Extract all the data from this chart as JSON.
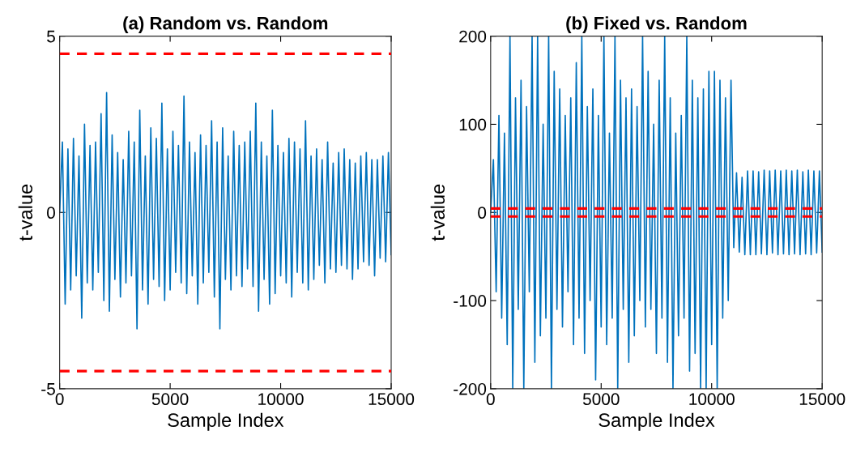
{
  "chart_data": [
    {
      "type": "line",
      "title": "(a) Random vs. Random",
      "xlabel": "Sample Index",
      "ylabel": "t-value",
      "x": [
        0,
        125,
        250,
        375,
        500,
        625,
        750,
        875,
        1000,
        1125,
        1250,
        1375,
        1500,
        1625,
        1750,
        1875,
        2000,
        2125,
        2250,
        2375,
        2500,
        2625,
        2750,
        2875,
        3000,
        3125,
        3250,
        3375,
        3500,
        3625,
        3750,
        3875,
        4000,
        4125,
        4250,
        4375,
        4500,
        4625,
        4750,
        4875,
        5000,
        5125,
        5250,
        5375,
        5500,
        5625,
        5750,
        5875,
        6000,
        6125,
        6250,
        6375,
        6500,
        6625,
        6750,
        6875,
        7000,
        7125,
        7250,
        7375,
        7500,
        7625,
        7750,
        7875,
        8000,
        8125,
        8250,
        8375,
        8500,
        8625,
        8750,
        8875,
        9000,
        9125,
        9250,
        9375,
        9500,
        9625,
        9750,
        9875,
        10000,
        10125,
        10250,
        10375,
        10500,
        10625,
        10750,
        10875,
        11000,
        11125,
        11250,
        11375,
        11500,
        11625,
        11750,
        11875,
        12000,
        12125,
        12250,
        12375,
        12500,
        12625,
        12750,
        12875,
        13000,
        13125,
        13250,
        13375,
        13500,
        13625,
        13750,
        13875,
        14000,
        14125,
        14250,
        14375,
        14500,
        14625,
        14750,
        14875,
        15000
      ],
      "series": [
        {
          "color": "#0072bd",
          "values": [
            0,
            2.0,
            -2.6,
            1.8,
            -2.2,
            2.1,
            -1.8,
            1.6,
            -3.0,
            2.5,
            -2.0,
            1.9,
            -2.2,
            2.0,
            -1.7,
            2.8,
            -2.5,
            3.4,
            -2.8,
            2.2,
            -1.9,
            1.7,
            -2.4,
            1.5,
            -2.0,
            2.3,
            -1.8,
            2.0,
            -3.3,
            2.9,
            -2.2,
            1.6,
            -2.6,
            2.4,
            -1.9,
            2.1,
            -2.1,
            3.1,
            -2.5,
            1.8,
            -2.2,
            2.3,
            -1.7,
            1.9,
            -2.0,
            3.3,
            -2.3,
            2.0,
            -1.8,
            1.7,
            -2.6,
            2.2,
            -2.0,
            1.9,
            -1.7,
            2.6,
            -2.4,
            2.0,
            -3.3,
            2.4,
            -1.9,
            1.6,
            -2.2,
            2.3,
            -1.8,
            1.9,
            -2.1,
            2.0,
            -1.6,
            2.3,
            -2.1,
            3.1,
            -2.8,
            2.0,
            -1.9,
            1.6,
            -2.6,
            2.9,
            -2.3,
            1.9,
            -1.8,
            1.7,
            -2.0,
            2.1,
            -2.4,
            2.0,
            -1.7,
            1.8,
            -2.0,
            2.6,
            -2.2,
            1.6,
            -1.9,
            1.8,
            -1.5,
            1.5,
            -2.0,
            2.0,
            -1.6,
            1.4,
            -1.7,
            1.7,
            -1.5,
            1.8,
            -1.6,
            1.5,
            -1.9,
            1.4,
            -1.6,
            1.6,
            -1.4,
            1.7,
            -1.5,
            1.5,
            -1.8,
            1.5,
            -1.3,
            1.6,
            -1.4,
            1.7,
            -1.2
          ]
        }
      ],
      "xlim": [
        0,
        15000
      ],
      "xticks": [
        0,
        5000,
        10000,
        15000
      ],
      "ylim": [
        -5,
        5
      ],
      "yticks": [
        -5,
        0,
        5
      ],
      "ref_lines": [
        {
          "axis": "y",
          "value": 4.5,
          "color": "#ff0000",
          "line_style": "dashed"
        },
        {
          "axis": "y",
          "value": -4.5,
          "color": "#ff0000",
          "line_style": "dashed"
        }
      ],
      "grid": false,
      "legend": false,
      "marker": "none",
      "line_style": "solid"
    },
    {
      "type": "line",
      "title": "(b) Fixed vs. Random",
      "xlabel": "Sample Index",
      "ylabel": "t-value",
      "x": [
        0,
        125,
        250,
        375,
        500,
        625,
        750,
        875,
        1000,
        1125,
        1250,
        1375,
        1500,
        1625,
        1750,
        1875,
        2000,
        2125,
        2250,
        2375,
        2500,
        2625,
        2750,
        2875,
        3000,
        3125,
        3250,
        3375,
        3500,
        3625,
        3750,
        3875,
        4000,
        4125,
        4250,
        4375,
        4500,
        4625,
        4750,
        4875,
        5000,
        5125,
        5250,
        5375,
        5500,
        5625,
        5750,
        5875,
        6000,
        6125,
        6250,
        6375,
        6500,
        6625,
        6750,
        6875,
        7000,
        7125,
        7250,
        7375,
        7500,
        7625,
        7750,
        7875,
        8000,
        8125,
        8250,
        8375,
        8500,
        8625,
        8750,
        8875,
        9000,
        9125,
        9250,
        9375,
        9500,
        9625,
        9750,
        9875,
        10000,
        10125,
        10250,
        10375,
        10500,
        10625,
        10750,
        10875,
        11000,
        11125,
        11250,
        11375,
        11500,
        11625,
        11750,
        11875,
        12000,
        12125,
        12250,
        12375,
        12500,
        12625,
        12750,
        12875,
        13000,
        13125,
        13250,
        13375,
        13500,
        13625,
        13750,
        13875,
        14000,
        14125,
        14250,
        14375,
        14500,
        14625,
        14750,
        14875,
        15000
      ],
      "series": [
        {
          "color": "#0072bd",
          "values": [
            0,
            60,
            -90,
            110,
            -120,
            90,
            -150,
            200,
            -200,
            130,
            -110,
            150,
            -200,
            120,
            -90,
            200,
            -170,
            200,
            -140,
            100,
            -120,
            200,
            -200,
            160,
            -110,
            140,
            -130,
            110,
            -90,
            130,
            -150,
            170,
            -120,
            200,
            -160,
            120,
            -100,
            140,
            -190,
            110,
            -130,
            200,
            -150,
            90,
            -120,
            200,
            -200,
            150,
            -110,
            130,
            -170,
            140,
            -140,
            120,
            -100,
            200,
            -130,
            160,
            -110,
            100,
            -160,
            150,
            -120,
            200,
            -170,
            130,
            -200,
            90,
            -140,
            110,
            -120,
            200,
            -180,
            150,
            -160,
            130,
            -200,
            140,
            -200,
            160,
            -150,
            160,
            -200,
            150,
            -120,
            130,
            -100,
            150,
            -40,
            45,
            -45,
            40,
            -48,
            47,
            -48,
            47,
            -48,
            46,
            -47,
            48,
            -48,
            47,
            -46,
            48,
            -48,
            47,
            -47,
            48,
            -48,
            47,
            -47,
            48,
            -48,
            46,
            -47,
            48,
            -48,
            47,
            -46,
            47,
            -45
          ]
        }
      ],
      "xlim": [
        0,
        15000
      ],
      "xticks": [
        0,
        5000,
        10000,
        15000
      ],
      "ylim": [
        -200,
        200
      ],
      "yticks": [
        -200,
        -100,
        0,
        100,
        200
      ],
      "ref_lines": [
        {
          "axis": "y",
          "value": 4.5,
          "color": "#ff0000",
          "line_style": "dashed"
        },
        {
          "axis": "y",
          "value": -4.5,
          "color": "#ff0000",
          "line_style": "dashed"
        }
      ],
      "grid": false,
      "legend": false,
      "marker": "none",
      "line_style": "solid"
    }
  ]
}
